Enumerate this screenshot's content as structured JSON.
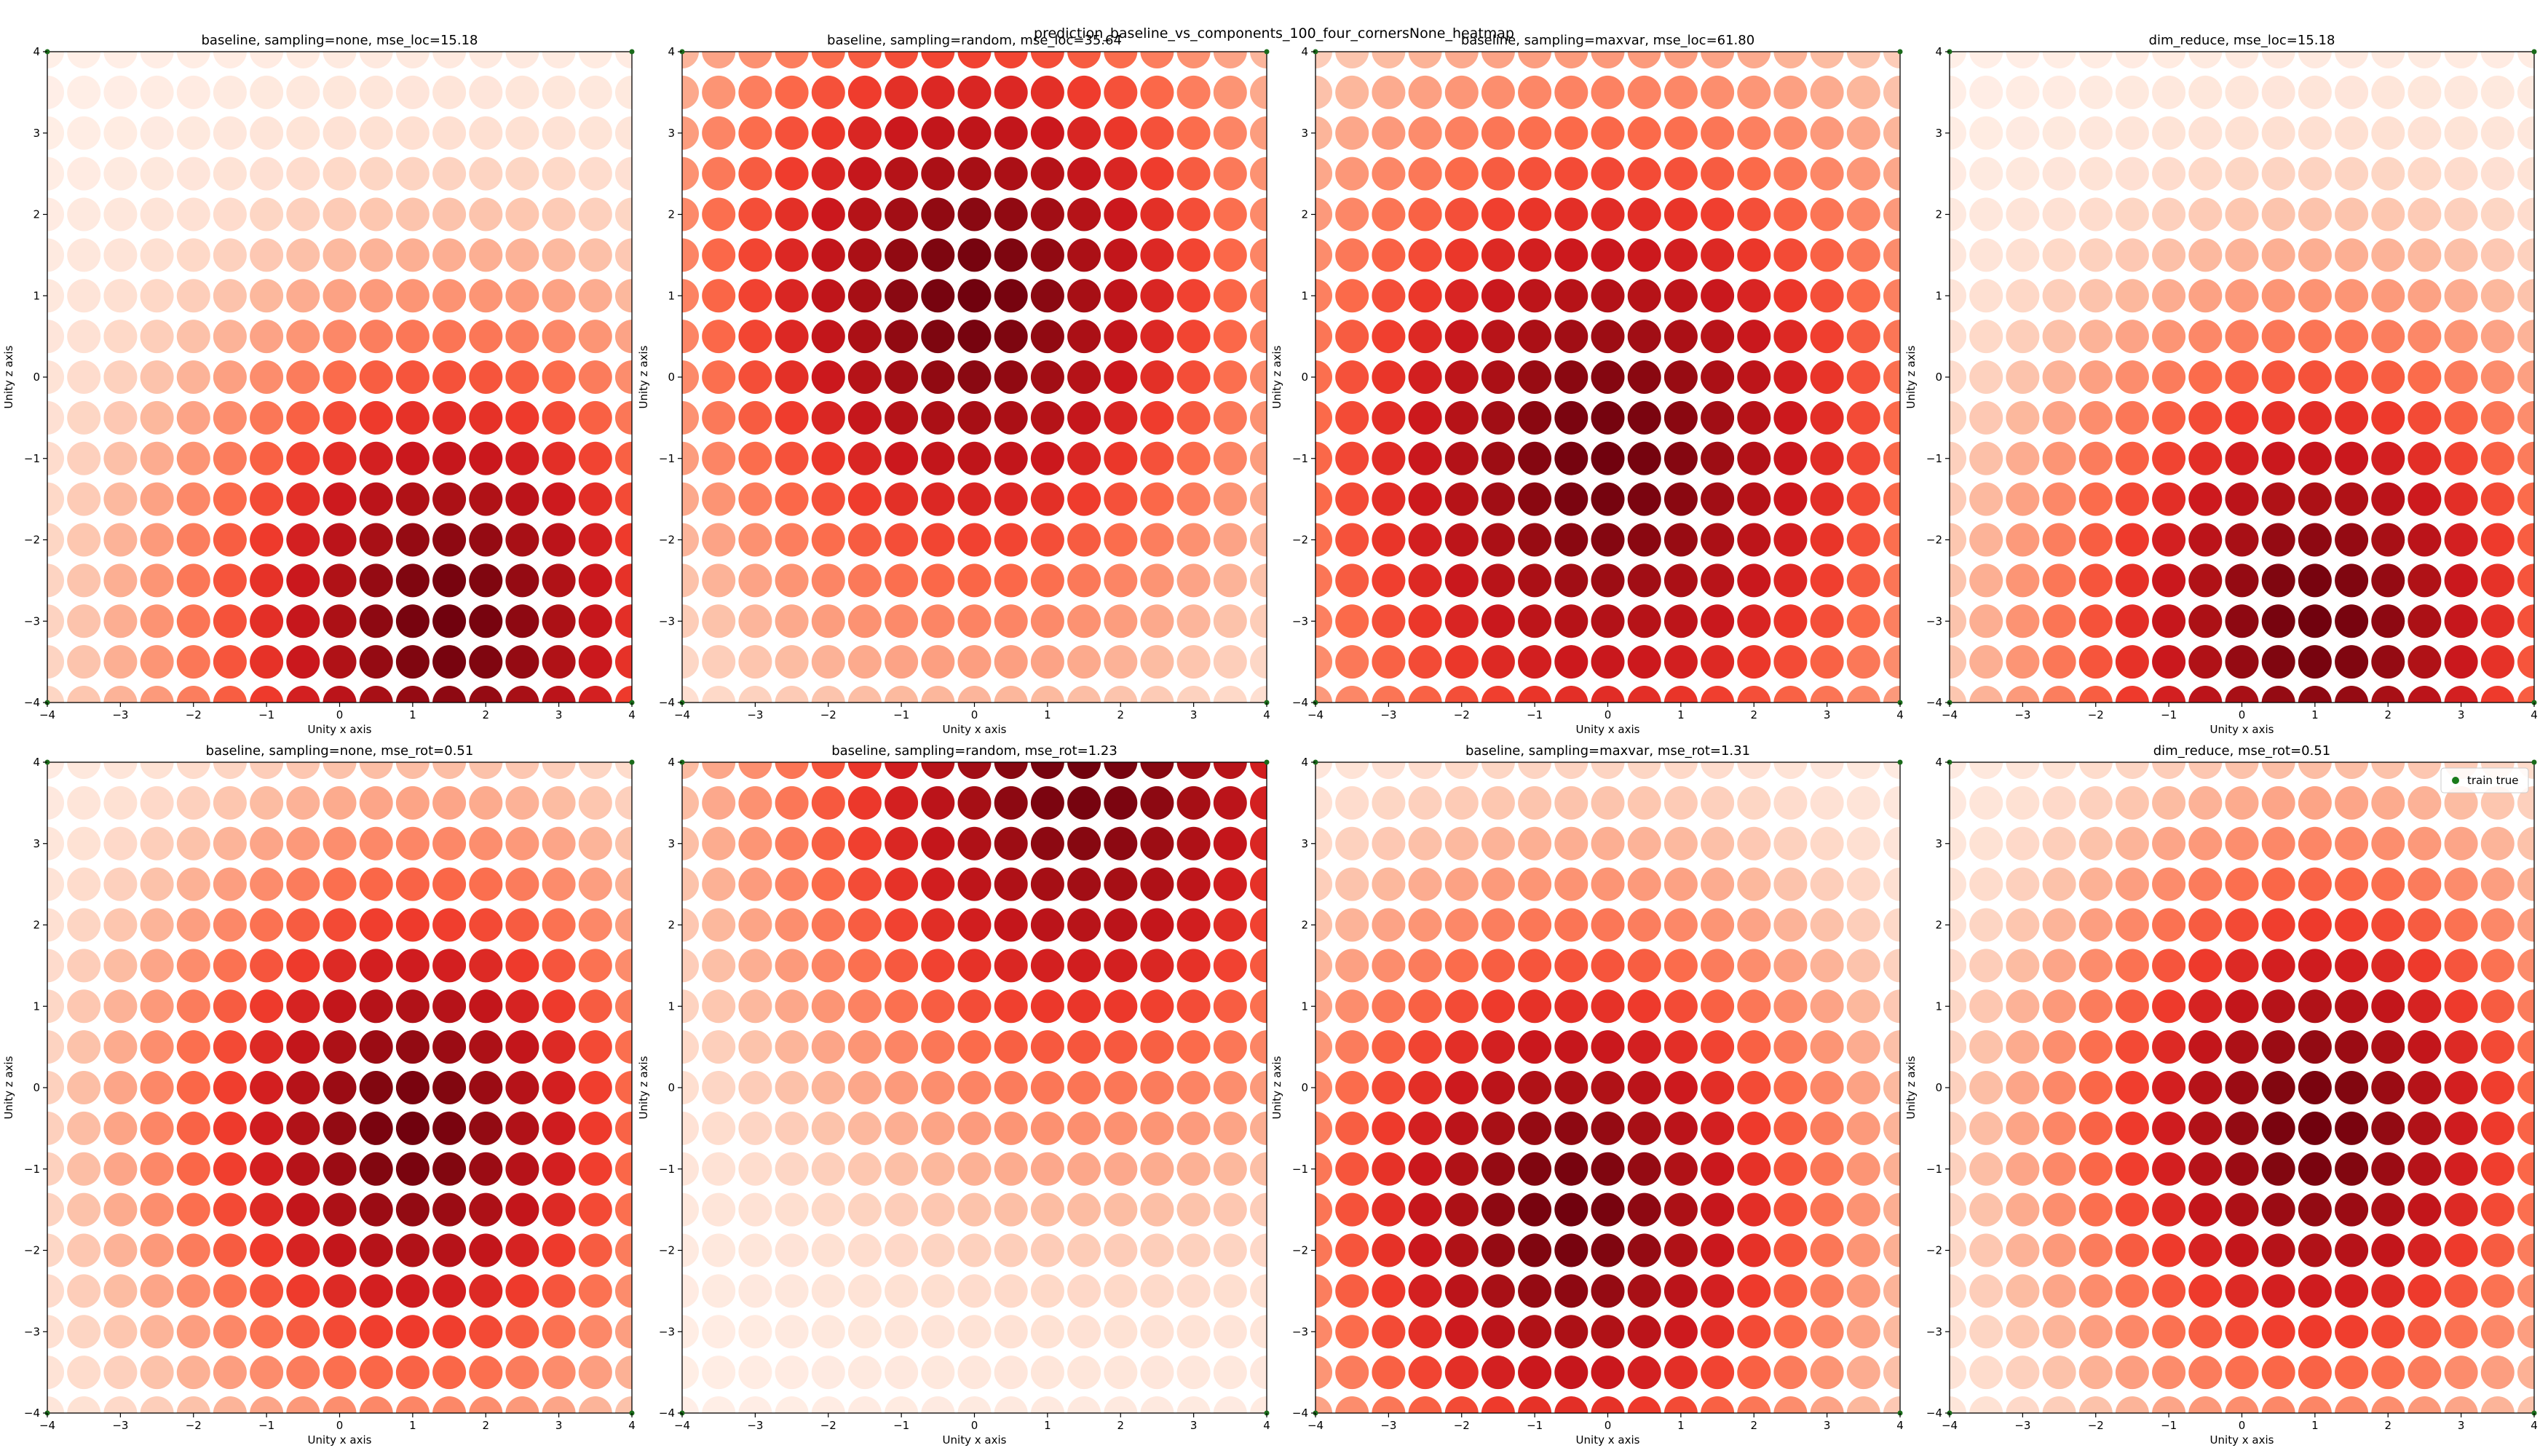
{
  "figure_title": "prediction_baseline_vs_components_100_four_cornersNone_heatmap",
  "colormap": "Reds",
  "colors": {
    "legend_dot": "#1a7a1a",
    "corner_marker": "#1a6b1a"
  },
  "legend": {
    "label": "train true",
    "placement": "top-right of last panel"
  },
  "chart_data": [
    {
      "type": "scatter",
      "title": "baseline, sampling=none, mse_loc=15.18",
      "xlabel": "Unity x axis",
      "ylabel": "Unity z axis",
      "xlim": [
        -4,
        4
      ],
      "ylim": [
        -4,
        4
      ],
      "x_ticks": [
        "−4",
        "−3",
        "−2",
        "−1",
        "0",
        "1",
        "2",
        "3",
        "4"
      ],
      "y_ticks": [
        "−4",
        "−3",
        "−2",
        "−1",
        "0",
        "1",
        "2",
        "3",
        "4"
      ],
      "grid_spacing": 0.5,
      "intensity_peak": [
        1.5,
        -3
      ],
      "intensity_scale": 2.8,
      "grid": false
    },
    {
      "type": "scatter",
      "title": "baseline, sampling=random, mse_loc=35.64",
      "xlabel": "Unity x axis",
      "ylabel": "Unity z axis",
      "xlim": [
        -4,
        4
      ],
      "ylim": [
        -4,
        4
      ],
      "x_ticks": [
        "−4",
        "−3",
        "−2",
        "−1",
        "0",
        "1",
        "2",
        "3",
        "4"
      ],
      "y_ticks": [
        "−4",
        "−3",
        "−2",
        "−1",
        "0",
        "1",
        "2",
        "3",
        "4"
      ],
      "grid_spacing": 0.5,
      "intensity_peak": [
        0,
        1
      ],
      "intensity_scale": 3.0,
      "grid": false
    },
    {
      "type": "scatter",
      "title": "baseline, sampling=maxvar, mse_loc=61.80",
      "xlabel": "Unity x axis",
      "ylabel": "Unity z axis",
      "xlim": [
        -4,
        4
      ],
      "ylim": [
        -4,
        4
      ],
      "x_ticks": [
        "−4",
        "−3",
        "−2",
        "−1",
        "0",
        "1",
        "2",
        "3",
        "4"
      ],
      "y_ticks": [
        "−4",
        "−3",
        "−2",
        "−1",
        "0",
        "1",
        "2",
        "3",
        "4"
      ],
      "grid_spacing": 0.5,
      "intensity_peak": [
        0,
        -1
      ],
      "intensity_scale": 3.4,
      "grid": false
    },
    {
      "type": "scatter",
      "title": "dim_reduce, mse_loc=15.18",
      "xlabel": "Unity x axis",
      "ylabel": "Unity z axis",
      "xlim": [
        -4,
        4
      ],
      "ylim": [
        -4,
        4
      ],
      "x_ticks": [
        "−4",
        "−3",
        "−2",
        "−1",
        "0",
        "1",
        "2",
        "3",
        "4"
      ],
      "y_ticks": [
        "−4",
        "−3",
        "−2",
        "−1",
        "0",
        "1",
        "2",
        "3",
        "4"
      ],
      "grid_spacing": 0.5,
      "intensity_peak": [
        1,
        -3
      ],
      "intensity_scale": 2.8,
      "grid": false
    },
    {
      "type": "scatter",
      "title": "baseline, sampling=none, mse_rot=0.51",
      "xlabel": "Unity x axis",
      "ylabel": "Unity z axis",
      "xlim": [
        -4,
        4
      ],
      "ylim": [
        -4,
        4
      ],
      "x_ticks": [
        "−4",
        "−3",
        "−2",
        "−1",
        "0",
        "1",
        "2",
        "3",
        "4"
      ],
      "y_ticks": [
        "−4",
        "−3",
        "−2",
        "−1",
        "0",
        "1",
        "2",
        "3",
        "4"
      ],
      "grid_spacing": 0.5,
      "intensity_peak": [
        1,
        -0.5
      ],
      "intensity_scale": 2.6,
      "grid": false
    },
    {
      "type": "scatter",
      "title": "baseline, sampling=random, mse_rot=1.23",
      "xlabel": "Unity x axis",
      "ylabel": "Unity z axis",
      "xlim": [
        -4,
        4
      ],
      "ylim": [
        -4,
        4
      ],
      "x_ticks": [
        "−4",
        "−3",
        "−2",
        "−1",
        "0",
        "1",
        "2",
        "3",
        "4"
      ],
      "y_ticks": [
        "−4",
        "−3",
        "−2",
        "−1",
        "0",
        "1",
        "2",
        "3",
        "4"
      ],
      "grid_spacing": 0.5,
      "intensity_peak": [
        1.5,
        4
      ],
      "intensity_scale": 3.2,
      "grid": false
    },
    {
      "type": "scatter",
      "title": "baseline, sampling=maxvar, mse_rot=1.31",
      "xlabel": "Unity x axis",
      "ylabel": "Unity z axis",
      "xlim": [
        -4,
        4
      ],
      "ylim": [
        -4,
        4
      ],
      "x_ticks": [
        "−4",
        "−3",
        "−2",
        "−1",
        "0",
        "1",
        "2",
        "3",
        "4"
      ],
      "y_ticks": [
        "−4",
        "−3",
        "−2",
        "−1",
        "0",
        "1",
        "2",
        "3",
        "4"
      ],
      "grid_spacing": 0.5,
      "intensity_peak": [
        -0.5,
        -1.5
      ],
      "intensity_scale": 2.8,
      "grid": false
    },
    {
      "type": "scatter",
      "title": "dim_reduce, mse_rot=0.51",
      "xlabel": "Unity x axis",
      "ylabel": "Unity z axis",
      "xlim": [
        -4,
        4
      ],
      "ylim": [
        -4,
        4
      ],
      "x_ticks": [
        "−4",
        "−3",
        "−2",
        "−1",
        "0",
        "1",
        "2",
        "3",
        "4"
      ],
      "y_ticks": [
        "−4",
        "−3",
        "−2",
        "−1",
        "0",
        "1",
        "2",
        "3",
        "4"
      ],
      "grid_spacing": 0.5,
      "intensity_peak": [
        1,
        -0.5
      ],
      "intensity_scale": 2.6,
      "grid": false
    }
  ]
}
